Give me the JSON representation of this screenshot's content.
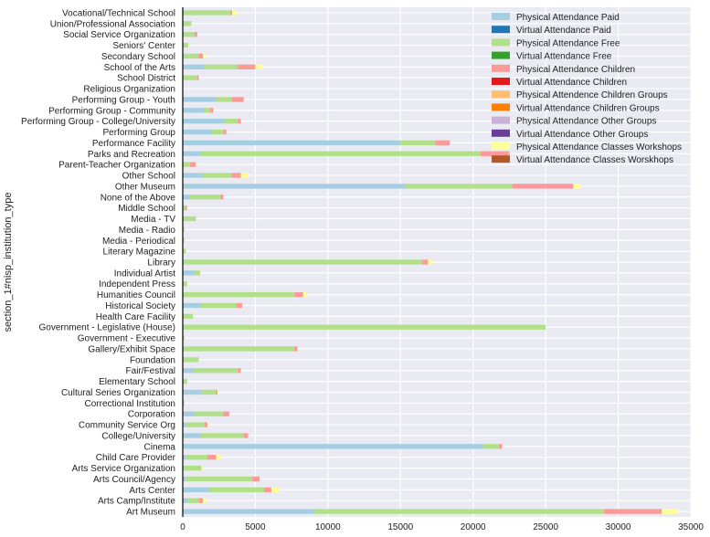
{
  "chart_data": {
    "type": "bar",
    "orientation": "horizontal",
    "stacked": true,
    "ylabel": "section_1#nisp_institution_type",
    "xlabel": "",
    "xlim": [
      0,
      35000
    ],
    "xticks": [
      0,
      5000,
      10000,
      15000,
      20000,
      25000,
      30000,
      35000
    ],
    "grid": true,
    "legend_position": "top-right",
    "categories": [
      "Art Museum",
      "Arts Camp/Institute",
      "Arts Center",
      "Arts Council/Agency",
      "Arts Service Organization",
      "Child Care Provider",
      "Cinema",
      "College/University",
      "Community Service Org",
      "Corporation",
      "Correctional Institution",
      "Cultural Series Organization",
      "Elementary School",
      "Fair/Festival",
      "Foundation",
      "Gallery/Exhibit Space",
      "Government - Executive",
      "Government - Legislative (House)",
      "Health Care Facility",
      "Historical Society",
      "Humanities Council",
      "Independent Press",
      "Individual Artist",
      "Library",
      "Literary Magazine",
      "Media - Periodical",
      "Media - Radio",
      "Media - TV",
      "Middle School",
      "None of the Above",
      "Other Museum",
      "Other School",
      "Parent-Teacher Organization",
      "Parks and Recreation",
      "Performance Facility",
      "Performing Group",
      "Performing Group - College/University",
      "Performing Group - Community",
      "Performing Group - Youth",
      "Religious Organization",
      "School District",
      "School of the Arts",
      "Secondary School",
      "Seniors' Center",
      "Social Service Organization",
      "Union/Professional Association",
      "Vocational/Technical School"
    ],
    "series": [
      {
        "name": "Physical Attendance Paid",
        "color": "#a6cee3",
        "values": [
          9000,
          300,
          1800,
          200,
          0,
          200,
          20700,
          1200,
          200,
          800,
          0,
          1300,
          0,
          700,
          0,
          0,
          0,
          0,
          0,
          1200,
          0,
          0,
          800,
          0,
          0,
          0,
          0,
          0,
          0,
          500,
          15300,
          1400,
          0,
          1200,
          15000,
          2000,
          2900,
          1500,
          2300,
          0,
          0,
          1500,
          0,
          0,
          0,
          0,
          0
        ]
      },
      {
        "name": "Virtual Attendance Paid",
        "color": "#1f78b4",
        "values": [
          0,
          0,
          0,
          0,
          0,
          0,
          0,
          0,
          0,
          0,
          0,
          0,
          0,
          0,
          0,
          0,
          0,
          0,
          0,
          0,
          0,
          0,
          0,
          0,
          0,
          0,
          0,
          0,
          0,
          0,
          0,
          0,
          0,
          0,
          0,
          0,
          0,
          0,
          0,
          0,
          0,
          0,
          0,
          0,
          0,
          0,
          0
        ]
      },
      {
        "name": "Physical Attendance Free",
        "color": "#b2df8a",
        "values": [
          20000,
          800,
          3800,
          4600,
          1300,
          1500,
          1100,
          3000,
          1300,
          2000,
          100,
          1000,
          300,
          3100,
          1100,
          7700,
          100,
          25000,
          700,
          2500,
          7700,
          300,
          400,
          16500,
          200,
          100,
          100,
          900,
          200,
          2100,
          7400,
          2000,
          500,
          19300,
          2400,
          800,
          900,
          400,
          1100,
          0,
          1000,
          2300,
          1100,
          400,
          800,
          600,
          3300
        ]
      },
      {
        "name": "Virtual Attendance Free",
        "color": "#33a02c",
        "values": [
          0,
          0,
          0,
          0,
          0,
          0,
          0,
          0,
          0,
          0,
          0,
          0,
          0,
          0,
          0,
          0,
          0,
          0,
          0,
          0,
          0,
          0,
          0,
          0,
          0,
          0,
          0,
          0,
          0,
          0,
          0,
          0,
          0,
          0,
          0,
          0,
          0,
          0,
          0,
          0,
          0,
          0,
          0,
          0,
          0,
          0,
          0
        ]
      },
      {
        "name": "Physical Attendance Children",
        "color": "#fb9a99",
        "values": [
          4000,
          300,
          500,
          500,
          0,
          600,
          200,
          300,
          200,
          400,
          0,
          100,
          0,
          200,
          0,
          200,
          0,
          0,
          0,
          400,
          600,
          0,
          0,
          400,
          0,
          0,
          0,
          0,
          100,
          200,
          4200,
          600,
          400,
          2000,
          1000,
          200,
          200,
          200,
          800,
          0,
          100,
          1200,
          300,
          0,
          200,
          0,
          100
        ]
      },
      {
        "name": "Virtual Attendance Children",
        "color": "#e31a1c",
        "values": [
          0,
          0,
          0,
          0,
          0,
          0,
          0,
          0,
          0,
          0,
          0,
          0,
          0,
          0,
          0,
          0,
          0,
          0,
          0,
          0,
          0,
          0,
          0,
          0,
          0,
          0,
          0,
          0,
          0,
          0,
          0,
          0,
          0,
          0,
          0,
          0,
          0,
          0,
          0,
          0,
          0,
          0,
          0,
          0,
          0,
          0,
          0
        ]
      },
      {
        "name": "Physical Attendence Children Groups",
        "color": "#fdbf6f",
        "values": [
          0,
          0,
          0,
          0,
          0,
          0,
          0,
          0,
          0,
          0,
          0,
          0,
          0,
          0,
          0,
          0,
          0,
          0,
          0,
          0,
          0,
          0,
          0,
          0,
          0,
          0,
          0,
          0,
          0,
          0,
          0,
          0,
          0,
          0,
          0,
          0,
          0,
          0,
          0,
          0,
          0,
          0,
          0,
          0,
          0,
          0,
          0
        ]
      },
      {
        "name": "Virtual Attendance Children Groups",
        "color": "#ff7f00",
        "values": [
          0,
          0,
          0,
          0,
          0,
          0,
          0,
          0,
          0,
          0,
          0,
          0,
          0,
          0,
          0,
          0,
          0,
          0,
          0,
          0,
          0,
          0,
          0,
          0,
          0,
          0,
          0,
          0,
          0,
          0,
          0,
          0,
          0,
          0,
          0,
          0,
          0,
          0,
          0,
          0,
          0,
          0,
          0,
          0,
          0,
          0,
          0
        ]
      },
      {
        "name": "Physical Attendance Other Groups",
        "color": "#cab2d6",
        "values": [
          0,
          0,
          0,
          0,
          0,
          0,
          0,
          0,
          0,
          0,
          0,
          0,
          0,
          0,
          0,
          0,
          0,
          0,
          0,
          0,
          0,
          0,
          0,
          0,
          0,
          0,
          0,
          0,
          0,
          0,
          0,
          0,
          0,
          0,
          0,
          0,
          0,
          0,
          0,
          0,
          0,
          0,
          0,
          0,
          0,
          0,
          0
        ]
      },
      {
        "name": "Virtual Attendance Other Groups",
        "color": "#6a3d9a",
        "values": [
          0,
          0,
          0,
          0,
          0,
          0,
          0,
          0,
          0,
          0,
          0,
          0,
          0,
          0,
          0,
          0,
          0,
          0,
          0,
          0,
          0,
          0,
          0,
          0,
          0,
          0,
          0,
          0,
          0,
          0,
          0,
          0,
          0,
          0,
          0,
          0,
          0,
          0,
          0,
          0,
          0,
          0,
          0,
          0,
          0,
          0,
          0
        ]
      },
      {
        "name": "Physical Attendance Classes Workshops",
        "color": "#ffff99",
        "values": [
          1100,
          200,
          500,
          0,
          100,
          300,
          0,
          0,
          100,
          0,
          0,
          100,
          0,
          0,
          0,
          0,
          0,
          0,
          0,
          0,
          200,
          0,
          0,
          300,
          0,
          0,
          0,
          0,
          0,
          0,
          500,
          500,
          0,
          0,
          0,
          0,
          0,
          0,
          0,
          0,
          0,
          500,
          200,
          100,
          0,
          0,
          300
        ]
      },
      {
        "name": "Virtual Attendance Classes Worskhops",
        "color": "#b15928",
        "values": [
          0,
          0,
          0,
          0,
          0,
          0,
          0,
          0,
          0,
          0,
          0,
          0,
          0,
          0,
          0,
          0,
          0,
          0,
          0,
          0,
          0,
          0,
          0,
          0,
          0,
          0,
          0,
          0,
          0,
          0,
          0,
          0,
          0,
          0,
          0,
          0,
          0,
          0,
          0,
          0,
          0,
          0,
          0,
          0,
          0,
          0,
          0
        ]
      }
    ],
    "colors": {
      "background": "#eaeaf2",
      "grid": "#ffffff",
      "axis": "#000000"
    }
  }
}
